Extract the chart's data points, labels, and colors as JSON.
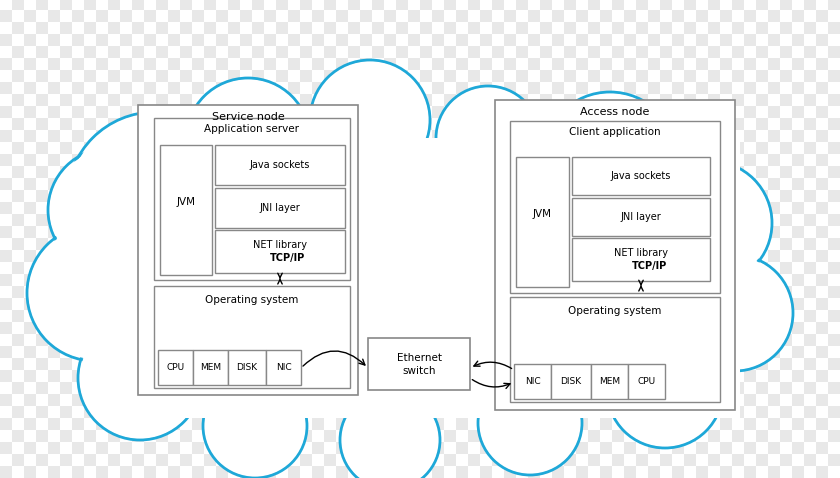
{
  "cloud_color": "#1ea8d8",
  "box_ec": "#888888",
  "box_fc": "#ffffff",
  "figsize": [
    8.4,
    4.78
  ],
  "dpi": 100,
  "checker_light": "#e8e8e8",
  "checker_dark": "#ffffff",
  "cloud_circles": [
    [
      155,
      278,
      88
    ],
    [
      248,
      338,
      62
    ],
    [
      370,
      358,
      60
    ],
    [
      488,
      340,
      52
    ],
    [
      610,
      318,
      68
    ],
    [
      710,
      255,
      62
    ],
    [
      735,
      165,
      58
    ],
    [
      665,
      88,
      58
    ],
    [
      530,
      55,
      52
    ],
    [
      390,
      38,
      50
    ],
    [
      255,
      52,
      52
    ],
    [
      140,
      100,
      62
    ],
    [
      95,
      185,
      68
    ],
    [
      110,
      268,
      62
    ]
  ]
}
